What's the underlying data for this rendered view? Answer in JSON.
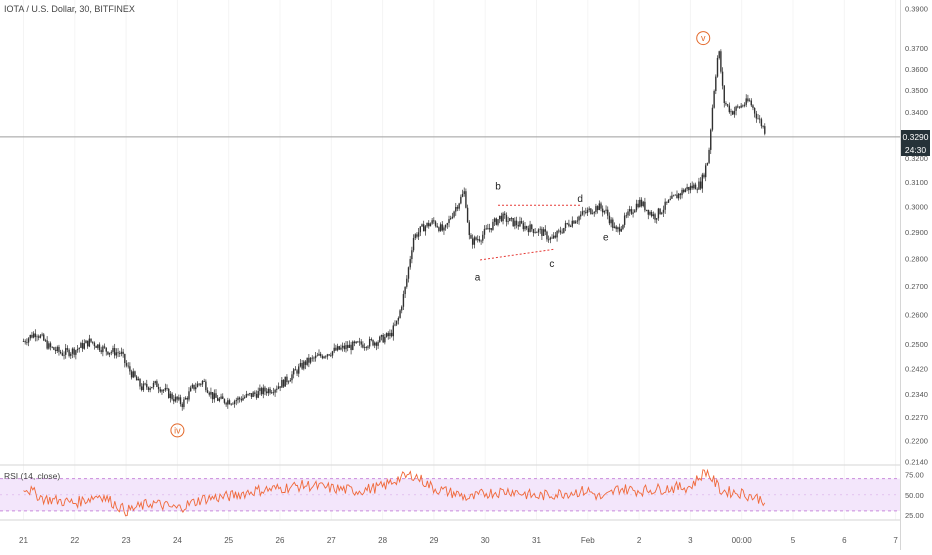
{
  "header": {
    "symbol_title": "IOTA / U.S. Dollar, 30, BITFINEX"
  },
  "rsi_panel": {
    "label": "RSI (14, close)",
    "ticks": [
      "75.00",
      "50.00",
      "25.00"
    ]
  },
  "price_tag": {
    "price": "0.3290",
    "countdown": "24:30"
  },
  "colors": {
    "candle": "#2f2f2f",
    "rsi_line": "#f0693a",
    "rsi_band_fill": "#f3e6fb",
    "rsi_band_edge": "#c98bdc",
    "wave_label": "#e3692b",
    "channel_line": "#e53935",
    "price_line": "#9e9e9e",
    "price_tag_bg": "#263238"
  },
  "chart_data": {
    "type": "candlestick",
    "symbol": "IOTA / U.S. Dollar",
    "interval": "30",
    "exchange": "BITFINEX",
    "scale": "log",
    "ylim": [
      0.214,
      0.395
    ],
    "y_ticks": [
      "0.3900",
      "0.3700",
      "0.3600",
      "0.3500",
      "0.3400",
      "0.3290",
      "0.3200",
      "0.3100",
      "0.3000",
      "0.2900",
      "0.2800",
      "0.2700",
      "0.2600",
      "0.2500",
      "0.2420",
      "0.2340",
      "0.2270",
      "0.2200",
      "0.2140"
    ],
    "x_ticks": [
      "21",
      "22",
      "23",
      "24",
      "25",
      "26",
      "27",
      "28",
      "29",
      "30",
      "31",
      "Feb",
      "2",
      "3",
      "00:00",
      "5",
      "6",
      "7"
    ],
    "price_path": [
      [
        0,
        0.251
      ],
      [
        0.25,
        0.254
      ],
      [
        0.5,
        0.249
      ],
      [
        0.75,
        0.247
      ],
      [
        1,
        0.248
      ],
      [
        1.3,
        0.251
      ],
      [
        1.6,
        0.248
      ],
      [
        1.9,
        0.247
      ],
      [
        2.0,
        0.243
      ],
      [
        2.3,
        0.236
      ],
      [
        2.6,
        0.237
      ],
      [
        2.9,
        0.233
      ],
      [
        3.1,
        0.231
      ],
      [
        3.3,
        0.236
      ],
      [
        3.5,
        0.238
      ],
      [
        3.7,
        0.233
      ],
      [
        3.85,
        0.232
      ],
      [
        4.1,
        0.232
      ],
      [
        4.5,
        0.234
      ],
      [
        4.9,
        0.236
      ],
      [
        5.1,
        0.238
      ],
      [
        5.5,
        0.244
      ],
      [
        5.9,
        0.247
      ],
      [
        6.3,
        0.249
      ],
      [
        6.6,
        0.25
      ],
      [
        6.9,
        0.251
      ],
      [
        7.15,
        0.253
      ],
      [
        7.3,
        0.258
      ],
      [
        7.45,
        0.27
      ],
      [
        7.6,
        0.288
      ],
      [
        7.8,
        0.292
      ],
      [
        8.0,
        0.294
      ],
      [
        8.2,
        0.29
      ],
      [
        8.35,
        0.297
      ],
      [
        8.6,
        0.306
      ],
      [
        8.7,
        0.286
      ],
      [
        8.9,
        0.288
      ],
      [
        9.1,
        0.292
      ],
      [
        9.3,
        0.296
      ],
      [
        9.5,
        0.294
      ],
      [
        9.8,
        0.292
      ],
      [
        10.1,
        0.29
      ],
      [
        10.3,
        0.287
      ],
      [
        10.6,
        0.293
      ],
      [
        10.9,
        0.297
      ],
      [
        11.2,
        0.3
      ],
      [
        11.35,
        0.298
      ],
      [
        11.55,
        0.29
      ],
      [
        11.8,
        0.297
      ],
      [
        12.0,
        0.302
      ],
      [
        12.3,
        0.296
      ],
      [
        12.6,
        0.302
      ],
      [
        12.9,
        0.307
      ],
      [
        13.2,
        0.309
      ],
      [
        13.35,
        0.32
      ],
      [
        13.45,
        0.348
      ],
      [
        13.55,
        0.37
      ],
      [
        13.65,
        0.345
      ],
      [
        13.8,
        0.34
      ],
      [
        14.0,
        0.343
      ],
      [
        14.15,
        0.345
      ],
      [
        14.3,
        0.338
      ],
      [
        14.4,
        0.334
      ],
      [
        14.45,
        0.332
      ]
    ],
    "wave_labels": [
      {
        "text": "iv",
        "x": 3.0,
        "price": 0.223,
        "circled": true
      },
      {
        "text": "v",
        "x": 13.25,
        "price": 0.375,
        "circled": true
      },
      {
        "text": "a",
        "x": 8.85,
        "price": 0.273,
        "circled": false
      },
      {
        "text": "b",
        "x": 9.25,
        "price": 0.308,
        "circled": false
      },
      {
        "text": "c",
        "x": 10.3,
        "price": 0.278,
        "circled": false
      },
      {
        "text": "d",
        "x": 10.85,
        "price": 0.303,
        "circled": false
      },
      {
        "text": "e",
        "x": 11.35,
        "price": 0.288,
        "circled": false
      }
    ],
    "triangle_lines": [
      [
        [
          8.9,
          0.2795
        ],
        [
          10.35,
          0.2835
        ]
      ],
      [
        [
          9.25,
          0.3005
        ],
        [
          10.85,
          0.3005
        ]
      ]
    ],
    "last_price": 0.329,
    "rsi": {
      "length": 14,
      "source": "close",
      "band": [
        30,
        70
      ],
      "ylim": [
        20,
        82
      ],
      "path": [
        [
          0,
          60
        ],
        [
          0.4,
          45
        ],
        [
          1,
          40
        ],
        [
          1.5,
          50
        ],
        [
          2,
          30
        ],
        [
          2.5,
          40
        ],
        [
          3,
          33
        ],
        [
          3.5,
          45
        ],
        [
          4,
          48
        ],
        [
          4.5,
          55
        ],
        [
          5,
          58
        ],
        [
          5.5,
          62
        ],
        [
          6,
          58
        ],
        [
          6.5,
          55
        ],
        [
          7,
          60
        ],
        [
          7.3,
          70
        ],
        [
          7.6,
          75
        ],
        [
          8,
          58
        ],
        [
          8.5,
          50
        ],
        [
          8.7,
          45
        ],
        [
          9,
          52
        ],
        [
          9.5,
          55
        ],
        [
          10,
          48
        ],
        [
          10.5,
          52
        ],
        [
          11,
          55
        ],
        [
          11.3,
          45
        ],
        [
          11.6,
          58
        ],
        [
          12,
          55
        ],
        [
          12.5,
          58
        ],
        [
          13,
          60
        ],
        [
          13.3,
          80
        ],
        [
          13.6,
          55
        ],
        [
          14,
          52
        ],
        [
          14.45,
          43
        ]
      ]
    }
  }
}
